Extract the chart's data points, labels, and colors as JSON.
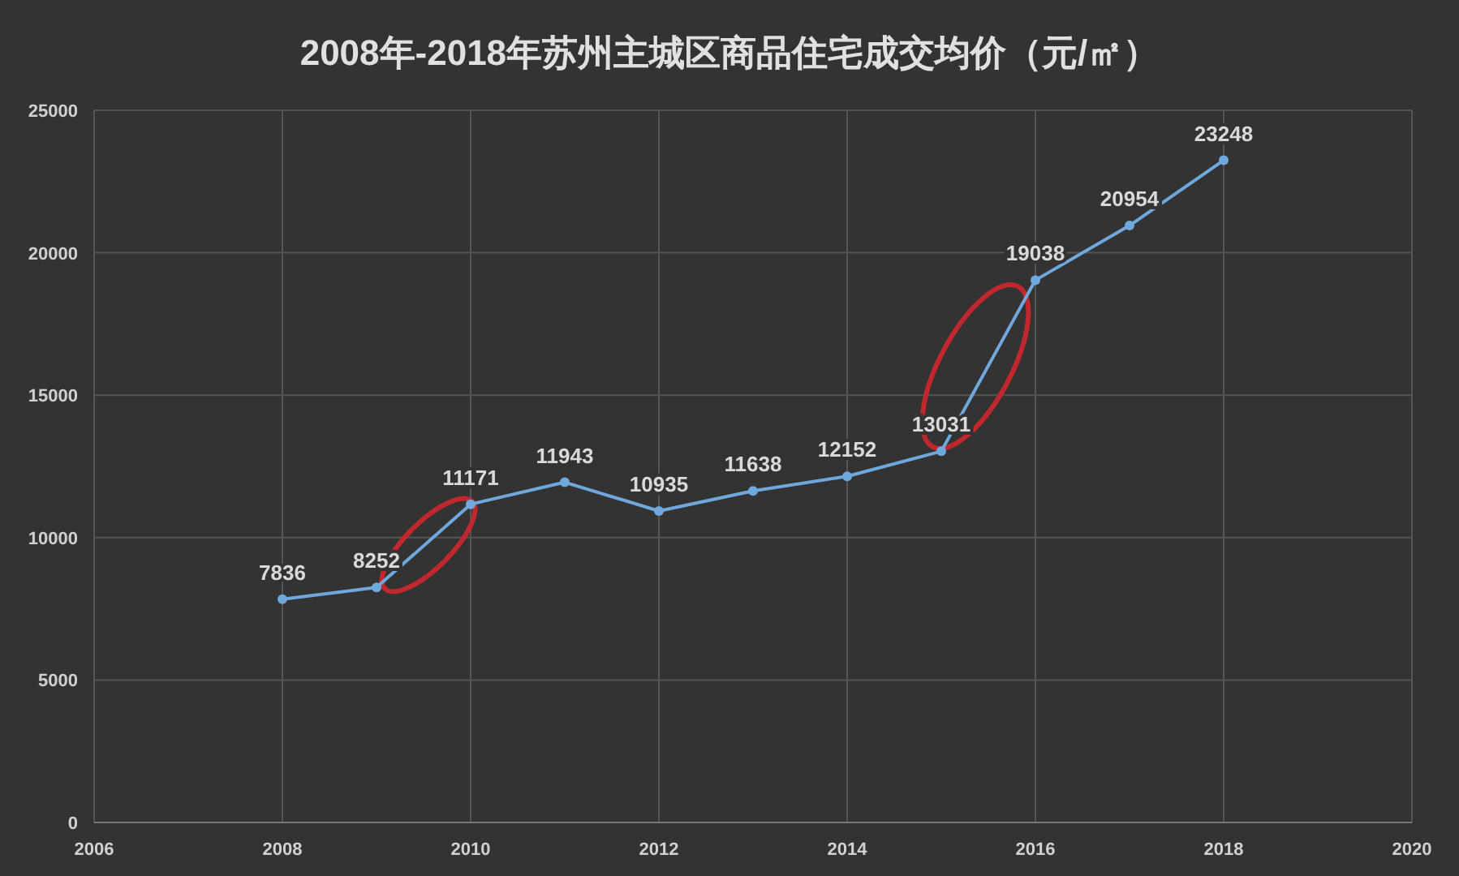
{
  "chart_data": {
    "type": "line",
    "title": "2008年-2018年苏州主城区商品住宅成交均价（元/㎡）",
    "x": [
      2008,
      2009,
      2010,
      2011,
      2012,
      2013,
      2014,
      2015,
      2016,
      2017,
      2018
    ],
    "series": [
      {
        "color": "#6fa8dc",
        "values": [
          7836,
          8252,
          11171,
          11943,
          10935,
          11638,
          12152,
          13031,
          19038,
          20954,
          23248
        ]
      }
    ],
    "xlim": [
      2006,
      2020
    ],
    "xticks": [
      2006,
      2008,
      2010,
      2012,
      2014,
      2016,
      2018,
      2020
    ],
    "ylim": [
      0,
      25000
    ],
    "yticks": [
      0,
      5000,
      10000,
      15000,
      20000,
      25000
    ],
    "grid": true,
    "marker": "circle",
    "line_style": "solid",
    "data_labels": true
  }
}
